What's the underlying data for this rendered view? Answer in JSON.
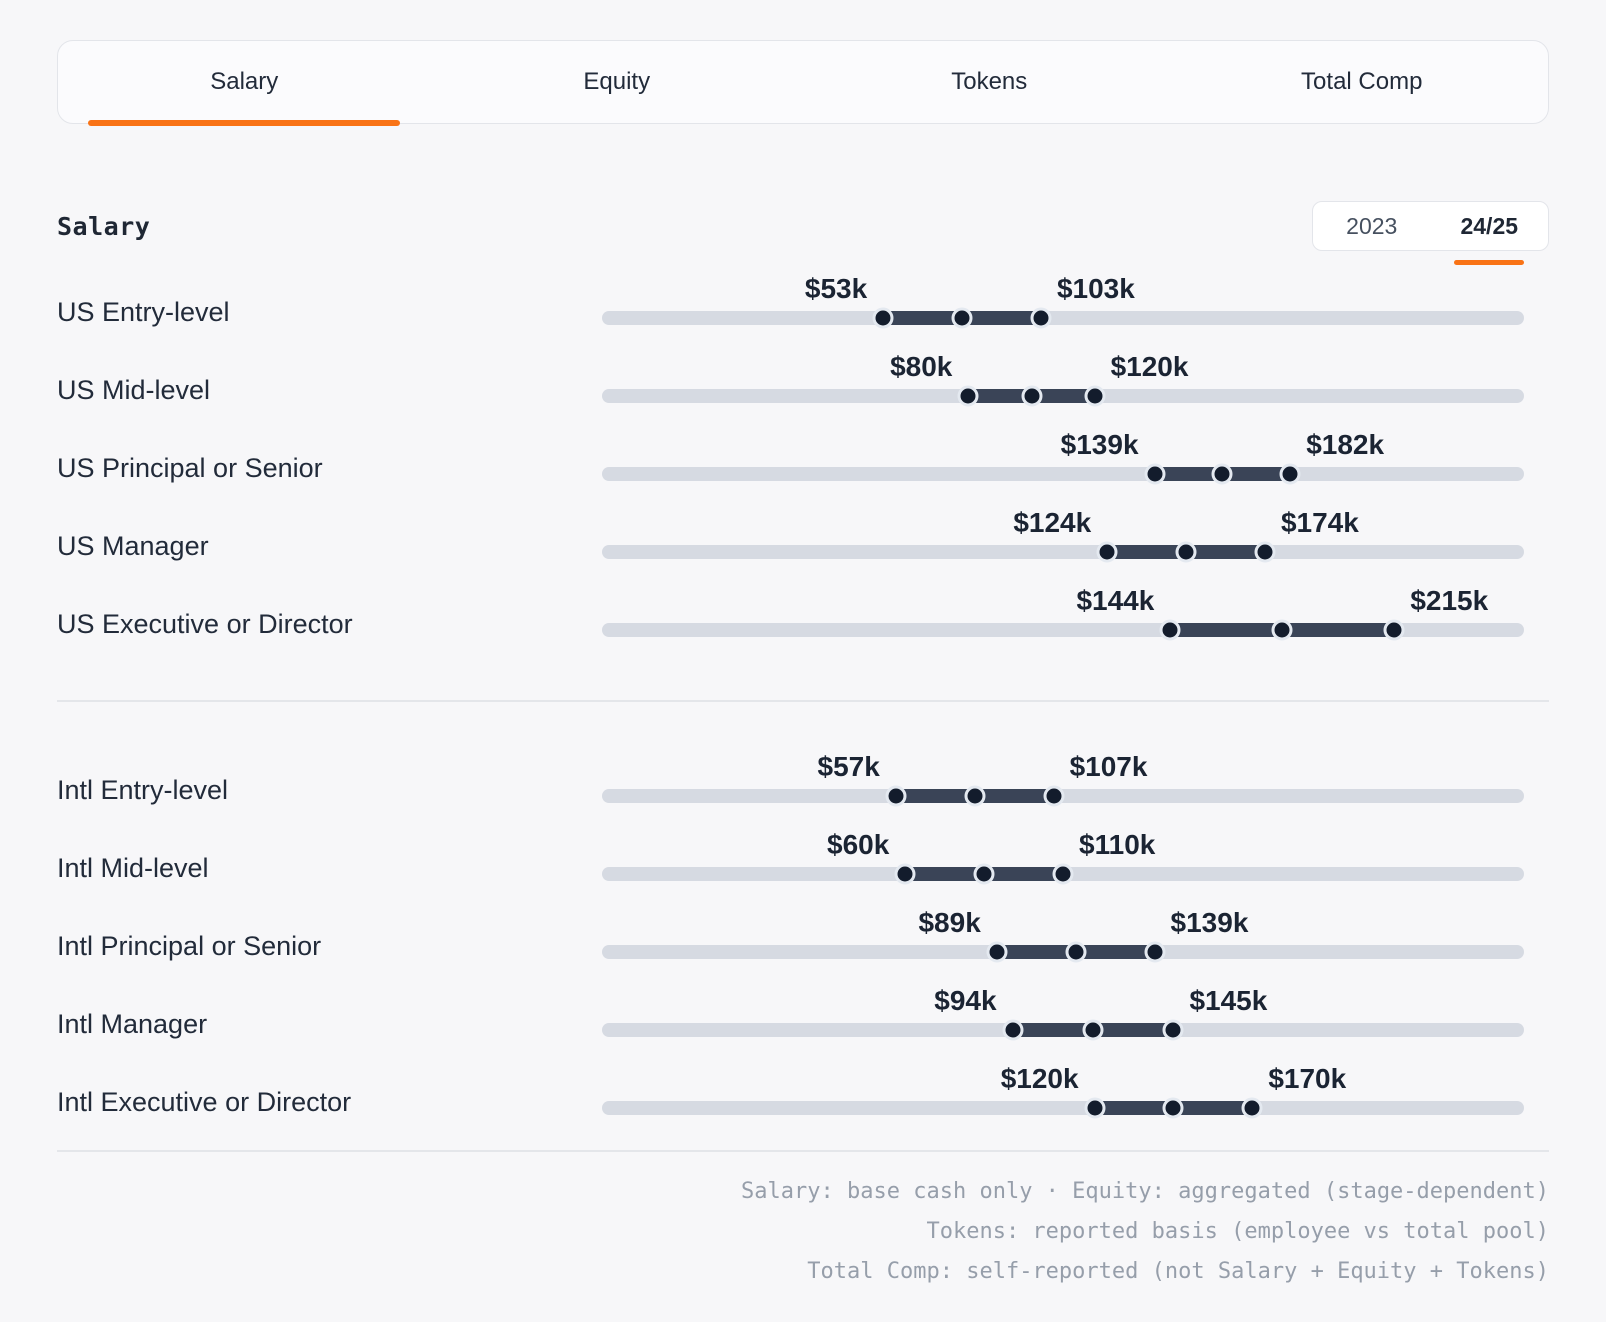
{
  "tab_bar": {
    "tabs": [
      {
        "label": "Salary",
        "active": true
      },
      {
        "label": "Equity",
        "active": false
      },
      {
        "label": "Tokens",
        "active": false
      },
      {
        "label": "Total Comp",
        "active": false
      }
    ]
  },
  "panel": {
    "heading": "Salary",
    "year_toggle": [
      {
        "label": "2023",
        "active": false
      },
      {
        "label": "24/25",
        "active": true
      }
    ]
  },
  "groups": [
    {
      "name": "us",
      "rows": [
        {
          "label": "US Entry-level",
          "min": 53,
          "max": 103,
          "min_label": "$53k",
          "max_label": "$103k"
        },
        {
          "label": "US Mid-level",
          "min": 80,
          "max": 120,
          "min_label": "$80k",
          "max_label": "$120k"
        },
        {
          "label": "US Principal or Senior",
          "min": 139,
          "max": 182,
          "min_label": "$139k",
          "max_label": "$182k"
        },
        {
          "label": "US Manager",
          "min": 124,
          "max": 174,
          "min_label": "$124k",
          "max_label": "$174k"
        },
        {
          "label": "US Executive or Director",
          "min": 144,
          "max": 215,
          "min_label": "$144k",
          "max_label": "$215k"
        }
      ]
    },
    {
      "name": "intl",
      "rows": [
        {
          "label": "Intl Entry-level",
          "min": 57,
          "max": 107,
          "min_label": "$57k",
          "max_label": "$107k"
        },
        {
          "label": "Intl Mid-level",
          "min": 60,
          "max": 110,
          "min_label": "$60k",
          "max_label": "$110k"
        },
        {
          "label": "Intl Principal or Senior",
          "min": 89,
          "max": 139,
          "min_label": "$89k",
          "max_label": "$139k"
        },
        {
          "label": "Intl Manager",
          "min": 94,
          "max": 145,
          "min_label": "$94k",
          "max_label": "$145k"
        },
        {
          "label": "Intl Executive or Director",
          "min": 120,
          "max": 170,
          "min_label": "$120k",
          "max_label": "$170k"
        }
      ]
    }
  ],
  "footnotes": [
    "Salary: base cash only · Equity: aggregated (stage-dependent)",
    "Tokens: reported basis (employee vs total pool)",
    "Total Comp: self-reported (not Salary + Equity + Tokens)"
  ],
  "colors": {
    "accent": "#f97316",
    "range_bar": "#3a4457",
    "handle_dot": "#131c2c",
    "track": "#d6dae2"
  }
}
